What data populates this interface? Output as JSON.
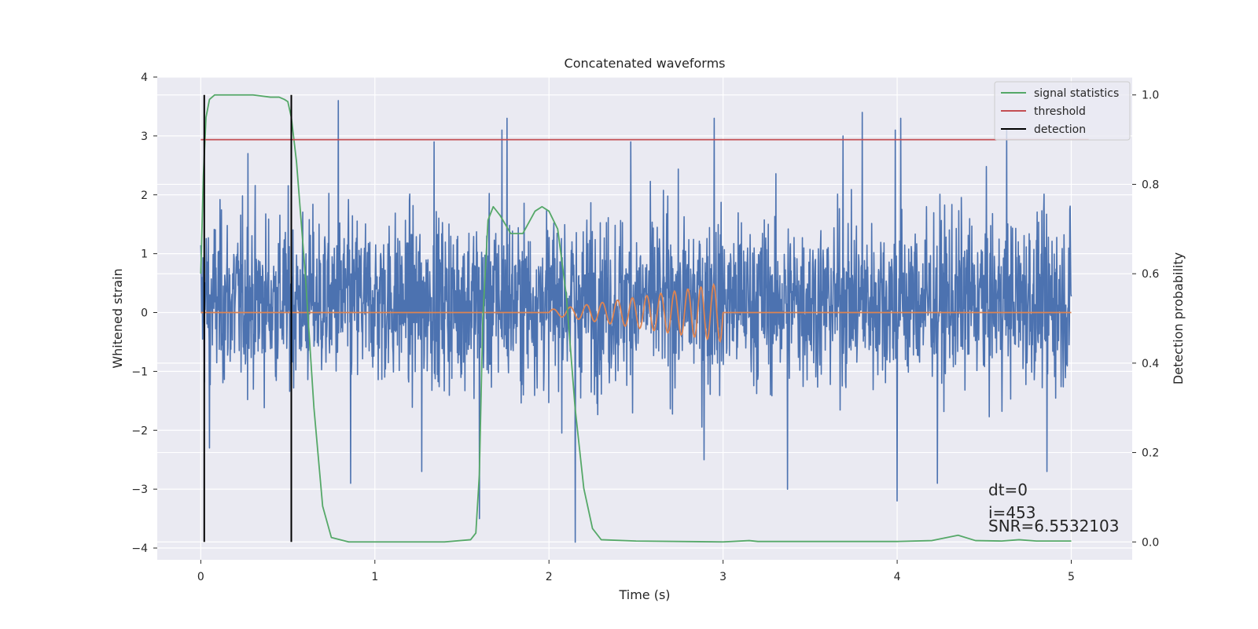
{
  "chart_data": {
    "type": "line",
    "title": "Concatenated waveforms",
    "xlabel": "Time (s)",
    "ylabel_left": "Whitened strain",
    "ylabel_right": "Detection probability",
    "xlim": [
      -0.25,
      5.35
    ],
    "ylim_left": [
      -4.2,
      4.0
    ],
    "ylim_right": [
      -0.04,
      1.04
    ],
    "xticks": [
      0,
      1,
      2,
      3,
      4,
      5
    ],
    "xtick_labels": [
      "0",
      "1",
      "2",
      "3",
      "4",
      "5"
    ],
    "yticks_left": [
      4,
      3,
      2,
      1,
      0,
      -1,
      -2,
      -3,
      -4
    ],
    "ytick_labels_left": [
      "4",
      "3",
      "2",
      "1",
      "0",
      "−1",
      "−2",
      "−3",
      "−4"
    ],
    "yticks_right": [
      1.0,
      0.8,
      0.6,
      0.4,
      0.2,
      0.0
    ],
    "ytick_labels_right": [
      "1.0",
      "0.8",
      "0.6",
      "0.4",
      "0.2",
      "0.0"
    ],
    "grid": true,
    "legend_position": "top-right",
    "legend": [
      {
        "label": "signal statistics",
        "color": "#55a868"
      },
      {
        "label": "threshold",
        "color": "#c44e52"
      },
      {
        "label": "detection",
        "color": "#000000"
      }
    ],
    "annotations": [
      "dt=0",
      "i=453",
      "SNR=6.5532103"
    ],
    "series": [
      {
        "name": "strain",
        "axis": "left",
        "color": "#4c72b0",
        "style": "noise",
        "x_range": [
          0,
          5
        ],
        "samples": 2400,
        "typical_range": [
          -1.6,
          2.3
        ],
        "peaks": [
          {
            "x": 0.79,
            "y": 3.6
          },
          {
            "x": 1.73,
            "y": 3.1
          },
          {
            "x": 1.76,
            "y": 3.3
          },
          {
            "x": 2.95,
            "y": 3.3
          },
          {
            "x": 3.69,
            "y": 3.0
          },
          {
            "x": 3.8,
            "y": 3.4
          },
          {
            "x": 4.02,
            "y": 3.3
          },
          {
            "x": 4.63,
            "y": 3.1
          },
          {
            "x": 0.27,
            "y": 2.7
          },
          {
            "x": 1.34,
            "y": 2.9
          },
          {
            "x": 2.47,
            "y": 2.9
          },
          {
            "x": 3.99,
            "y": 3.1
          }
        ],
        "troughs": [
          {
            "x": 2.15,
            "y": -3.9
          },
          {
            "x": 1.6,
            "y": -3.5
          },
          {
            "x": 0.05,
            "y": -2.3
          },
          {
            "x": 3.37,
            "y": -3.0
          },
          {
            "x": 4.0,
            "y": -3.2
          },
          {
            "x": 4.23,
            "y": -2.9
          },
          {
            "x": 0.86,
            "y": -2.9
          },
          {
            "x": 1.27,
            "y": -2.7
          },
          {
            "x": 2.89,
            "y": -2.5
          },
          {
            "x": 4.86,
            "y": -2.7
          }
        ]
      },
      {
        "name": "injected signal",
        "axis": "left",
        "color": "#dd8452",
        "style": "chirp",
        "x_range": [
          0,
          5
        ],
        "chirp_start": 2.0,
        "chirp_end": 3.0,
        "chirp_max_amplitude": 0.5,
        "chirp_f0": 10,
        "chirp_f1": 14
      },
      {
        "name": "signal statistics",
        "axis": "right",
        "color": "#55a868",
        "style": "line",
        "x": [
          0,
          0.015,
          0.03,
          0.05,
          0.08,
          0.1,
          0.2,
          0.3,
          0.4,
          0.45,
          0.48,
          0.5,
          0.52,
          0.55,
          0.6,
          0.65,
          0.7,
          0.75,
          0.85,
          1.0,
          1.2,
          1.4,
          1.55,
          1.58,
          1.6,
          1.62,
          1.65,
          1.68,
          1.72,
          1.78,
          1.85,
          1.92,
          1.96,
          2.0,
          2.05,
          2.1,
          2.15,
          2.2,
          2.25,
          2.3,
          2.5,
          3.0,
          3.15,
          3.2,
          3.5,
          4.0,
          4.2,
          4.35,
          4.45,
          4.6,
          4.7,
          4.8,
          5.0
        ],
        "y": [
          0.6,
          0.82,
          0.95,
          0.99,
          1.0,
          1.0,
          1.0,
          1.0,
          0.995,
          0.995,
          0.99,
          0.985,
          0.95,
          0.85,
          0.6,
          0.3,
          0.08,
          0.01,
          0.0,
          0.0,
          0.0,
          0.0,
          0.005,
          0.02,
          0.15,
          0.5,
          0.72,
          0.75,
          0.73,
          0.69,
          0.69,
          0.74,
          0.75,
          0.74,
          0.7,
          0.55,
          0.3,
          0.12,
          0.03,
          0.005,
          0.002,
          0.0,
          0.003,
          0.001,
          0.001,
          0.001,
          0.003,
          0.015,
          0.003,
          0.002,
          0.005,
          0.002,
          0.002
        ]
      },
      {
        "name": "threshold",
        "axis": "right",
        "color": "#c44e52",
        "style": "hline",
        "value": 0.9,
        "x_range": [
          0,
          5.1
        ]
      },
      {
        "name": "detection",
        "axis": "right",
        "color": "#000000",
        "style": "vlines",
        "x": [
          0.02,
          0.52
        ],
        "y_range": [
          0.0,
          1.0
        ]
      }
    ]
  }
}
